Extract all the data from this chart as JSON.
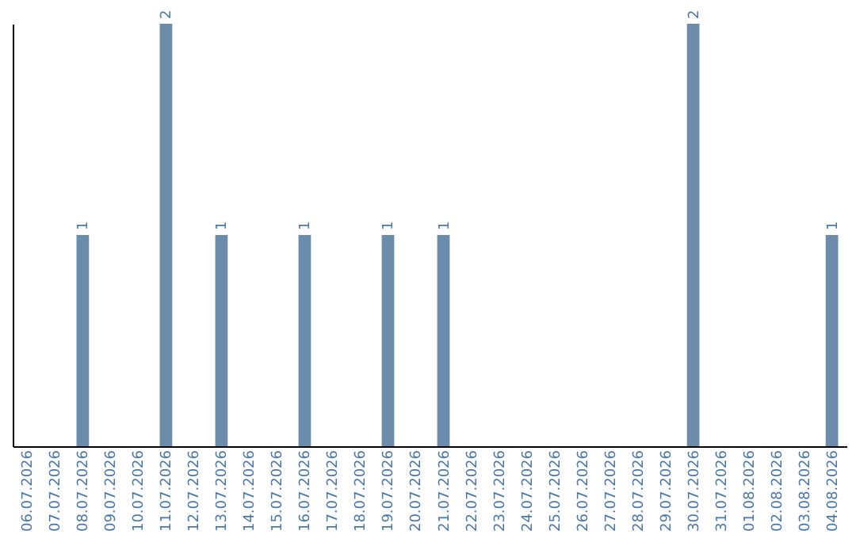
{
  "chart_data": {
    "type": "bar",
    "categories": [
      "06.07.2026",
      "07.07.2026",
      "08.07.2026",
      "09.07.2026",
      "10.07.2026",
      "11.07.2026",
      "12.07.2026",
      "13.07.2026",
      "14.07.2026",
      "15.07.2026",
      "16.07.2026",
      "17.07.2026",
      "18.07.2026",
      "19.07.2026",
      "20.07.2026",
      "21.07.2026",
      "22.07.2026",
      "23.07.2026",
      "24.07.2026",
      "25.07.2026",
      "26.07.2026",
      "27.07.2026",
      "28.07.2026",
      "29.07.2026",
      "30.07.2026",
      "31.07.2026",
      "01.08.2026",
      "02.08.2026",
      "03.08.2026",
      "04.08.2026"
    ],
    "values": [
      0,
      0,
      1,
      0,
      0,
      2,
      0,
      1,
      0,
      0,
      1,
      0,
      0,
      1,
      0,
      1,
      0,
      0,
      0,
      0,
      0,
      0,
      0,
      0,
      2,
      0,
      0,
      0,
      0,
      1
    ],
    "value_labels": [
      null,
      null,
      "1",
      null,
      null,
      "2",
      null,
      "1",
      null,
      null,
      "1",
      null,
      null,
      "1",
      null,
      "1",
      null,
      null,
      null,
      null,
      null,
      null,
      null,
      null,
      "2",
      null,
      null,
      null,
      null,
      "1"
    ],
    "color": "#6b8cab",
    "ylim": [
      0,
      2
    ],
    "tick_labels": "x",
    "grid": false
  }
}
